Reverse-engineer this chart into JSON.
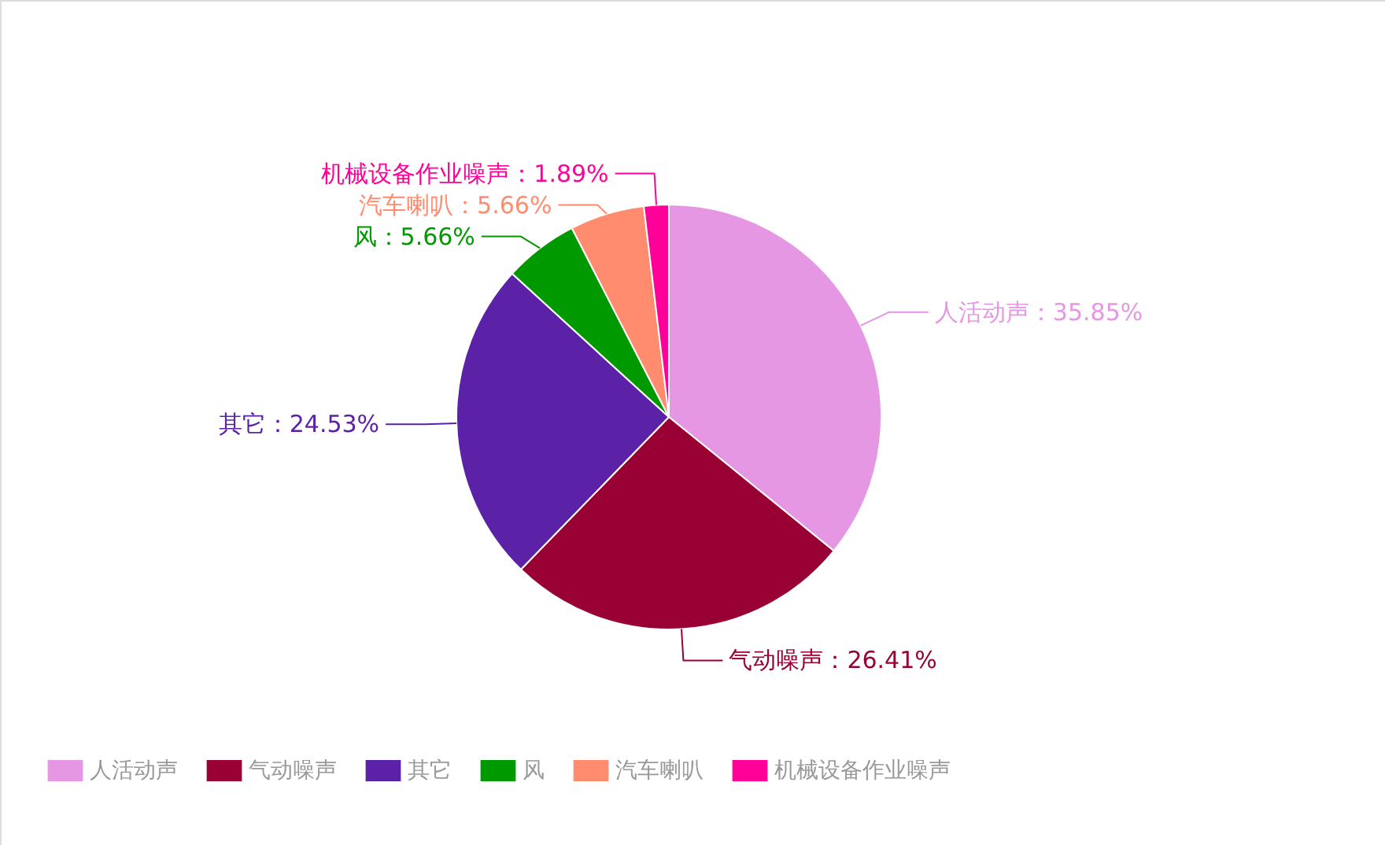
{
  "chart_data": {
    "type": "pie",
    "categories": [
      "人活动声",
      "气动噪声",
      "其它",
      "风",
      "汽车喇叭",
      "机械设备作业噪声"
    ],
    "values": [
      35.85,
      26.41,
      24.53,
      5.66,
      5.66,
      1.89
    ],
    "colors": [
      "#e597e3",
      "#990033",
      "#5b22a8",
      "#009900",
      "#ff8c6e",
      "#ff0099"
    ],
    "value_labels": [
      "：35.85%",
      "：26.41%",
      "：24.53%",
      "：5.66%",
      "：5.66%",
      "：1.89%"
    ],
    "legend": "bottom"
  }
}
